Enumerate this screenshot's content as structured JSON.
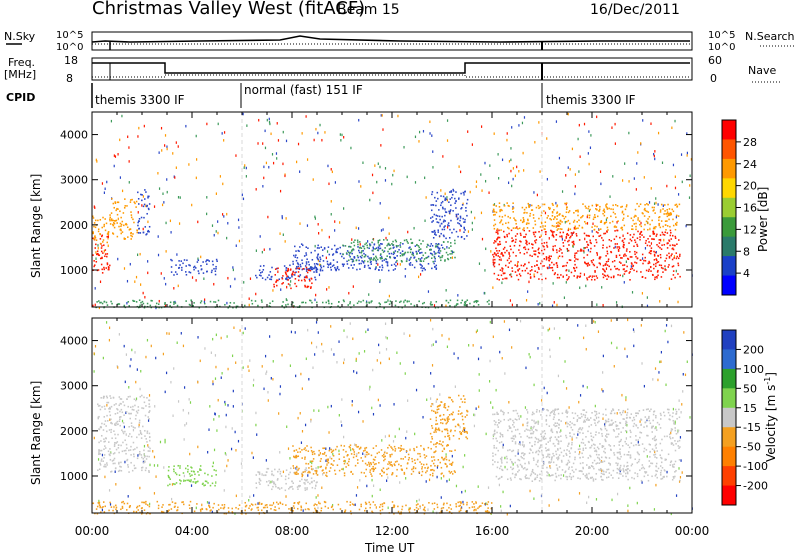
{
  "header": {
    "title": "Christmas Valley West (fitACF)",
    "beam": "Beam 15",
    "date": "16/Dec/2011"
  },
  "noise_panel": {
    "left_label": "N.Sky",
    "right_label": "N.Search",
    "left_ticks": [
      "10^5",
      "10^0"
    ],
    "right_ticks": [
      "10^5",
      "10^0"
    ]
  },
  "freq_panel": {
    "left_label_1": "Freq.",
    "left_label_2": "[MHz]",
    "right_label": "Nave",
    "left_ticks": [
      "18",
      "8"
    ],
    "right_ticks": [
      "60",
      "0"
    ]
  },
  "cpid": {
    "label": "CPID",
    "segments": [
      {
        "name": "themis 3300 IF",
        "start_hour": 0,
        "end_hour": 6
      },
      {
        "name": "normal (fast) 151 IF",
        "start_hour": 6,
        "end_hour": 18
      },
      {
        "name": "themis 3300 IF",
        "start_hour": 18,
        "end_hour": 24
      }
    ]
  },
  "x_axis": {
    "label": "Time UT",
    "ticks": [
      "00:00",
      "04:00",
      "08:00",
      "12:00",
      "16:00",
      "20:00",
      "00:00"
    ]
  },
  "colorbars": {
    "power": {
      "label": "Power [dB]",
      "ticks": [
        "28",
        "24",
        "20",
        "16",
        "12",
        "8",
        "4"
      ],
      "colors": [
        "#0000ff",
        "#1a40c8",
        "#2a7a6a",
        "#3a9a3a",
        "#9acd32",
        "#ffd700",
        "#ff9900",
        "#ff5500",
        "#ff0000"
      ]
    },
    "velocity": {
      "label_main": "Velocity [m s",
      "label_sup": "-1",
      "label_end": "]",
      "ticks": [
        "200",
        "100",
        "50",
        "15",
        "-15",
        "-50",
        "-100",
        "-200"
      ],
      "colors": [
        "#2040c0",
        "#2d6bd0",
        "#2ca02c",
        "#7fd34e",
        "#c8c8c8",
        "#f4a020",
        "#ff8000",
        "#ff4000",
        "#ff0000"
      ]
    }
  },
  "chart_data": [
    {
      "type": "heatmap",
      "name_label": "Power",
      "ylabel": "Slant Range [km]",
      "ylim": [
        180,
        4500
      ],
      "yticks": [
        1000,
        2000,
        3000,
        4000
      ],
      "xlim": [
        0,
        24
      ],
      "xlabel": "Time UT",
      "cbar_label": "Power [dB]",
      "regions": [
        {
          "t0": 0.0,
          "t1": 0.7,
          "r0": 900,
          "r1": 1800,
          "level": "red"
        },
        {
          "t0": 0.0,
          "t1": 0.7,
          "r0": 1600,
          "r1": 2300,
          "level": "orange"
        },
        {
          "t0": 0.7,
          "t1": 1.8,
          "r0": 1700,
          "r1": 2600,
          "level": "orange"
        },
        {
          "t0": 1.8,
          "t1": 2.3,
          "r0": 1800,
          "r1": 2800,
          "level": "blue"
        },
        {
          "t0": 3.0,
          "t1": 5.0,
          "r0": 900,
          "r1": 1250,
          "level": "blue"
        },
        {
          "t0": 6.5,
          "t1": 9.0,
          "r0": 800,
          "r1": 1150,
          "level": "blue"
        },
        {
          "t0": 7.2,
          "t1": 8.8,
          "r0": 600,
          "r1": 1100,
          "level": "red"
        },
        {
          "t0": 8.0,
          "t1": 14.0,
          "r0": 1000,
          "r1": 1600,
          "level": "blue"
        },
        {
          "t0": 10.0,
          "t1": 14.5,
          "r0": 1200,
          "r1": 1700,
          "level": "green"
        },
        {
          "t0": 13.5,
          "t1": 15.0,
          "r0": 1700,
          "r1": 2800,
          "level": "blue"
        },
        {
          "t0": 16.0,
          "t1": 23.5,
          "r0": 800,
          "r1": 1900,
          "level": "red"
        },
        {
          "t0": 16.0,
          "t1": 23.5,
          "r0": 1900,
          "r1": 2500,
          "level": "orange"
        },
        {
          "t0": 0.0,
          "t1": 16.0,
          "r0": 180,
          "r1": 350,
          "level": "green"
        }
      ]
    },
    {
      "type": "heatmap",
      "name_label": "Velocity",
      "ylabel": "Slant Range [km]",
      "ylim": [
        180,
        4500
      ],
      "yticks": [
        1000,
        2000,
        3000,
        4000
      ],
      "xlim": [
        0,
        24
      ],
      "xlabel": "Time UT",
      "cbar_label": "Velocity [m s-1]",
      "regions": [
        {
          "t0": 0.2,
          "t1": 2.3,
          "r0": 1100,
          "r1": 2800,
          "level": "grey"
        },
        {
          "t0": 3.0,
          "t1": 5.0,
          "r0": 800,
          "r1": 1250,
          "level": "green"
        },
        {
          "t0": 6.5,
          "t1": 9.0,
          "r0": 700,
          "r1": 1200,
          "level": "grey"
        },
        {
          "t0": 8.0,
          "t1": 14.5,
          "r0": 1000,
          "r1": 1700,
          "level": "orange"
        },
        {
          "t0": 13.5,
          "t1": 15.0,
          "r0": 1700,
          "r1": 2800,
          "level": "orange"
        },
        {
          "t0": 16.0,
          "t1": 23.5,
          "r0": 900,
          "r1": 2500,
          "level": "grey"
        },
        {
          "t0": 0.0,
          "t1": 16.0,
          "r0": 180,
          "r1": 450,
          "level": "orange"
        }
      ]
    }
  ]
}
